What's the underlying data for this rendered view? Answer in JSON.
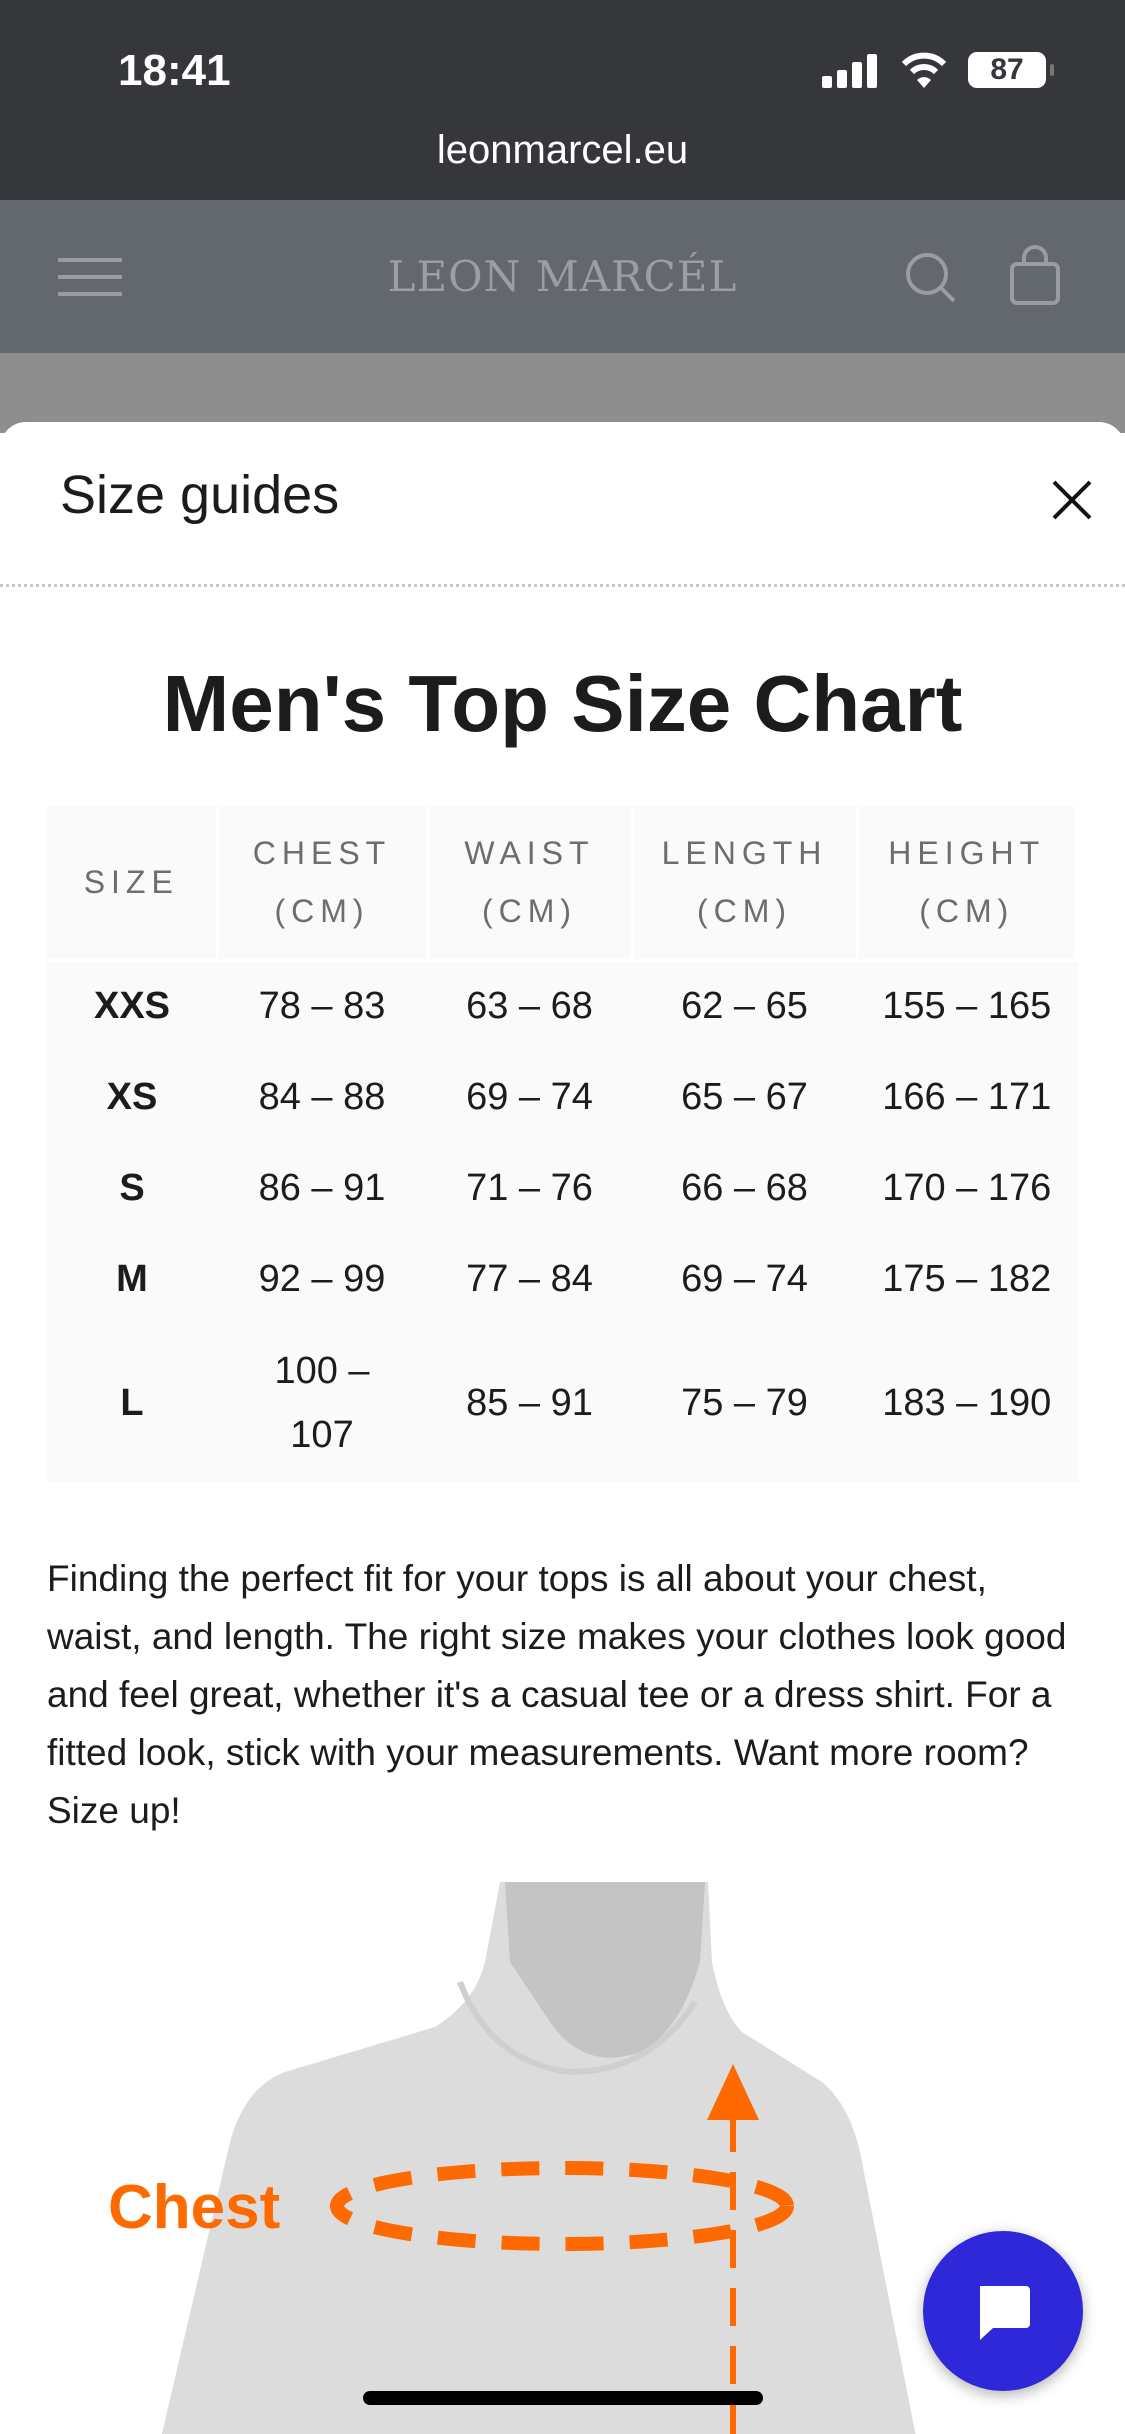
{
  "status_bar": {
    "time": "18:41",
    "battery": "87",
    "url": "leonmarcel.eu"
  },
  "site_header": {
    "logo": "LEON MARCÉL",
    "icons": [
      "menu-icon",
      "search-icon",
      "bag-icon"
    ]
  },
  "modal": {
    "title": "Size guides",
    "close_icon": "close-icon"
  },
  "size_chart": {
    "title": "Men's Top Size Chart",
    "columns": [
      "SIZE",
      "CHEST (CM)",
      "WAIST (CM)",
      "LENGTH (CM)",
      "HEIGHT (CM)"
    ],
    "rows": [
      [
        "XXS",
        "78 – 83",
        "63 – 68",
        "62 – 65",
        "155 – 165"
      ],
      [
        "XS",
        "84 – 88",
        "69 – 74",
        "65 – 67",
        "166 – 171"
      ],
      [
        "S",
        "86 – 91",
        "71 – 76",
        "66 – 68",
        "170 – 176"
      ],
      [
        "M",
        "92 – 99",
        "77 – 84",
        "69 – 74",
        "175 – 182"
      ],
      [
        "L",
        "100 – 107",
        "85 – 91",
        "75 – 79",
        "183 – 190"
      ]
    ]
  },
  "description": "Finding the perfect fit for your tops is all about your chest, waist, and length. The right size makes your clothes look good and feel great, whether it's a casual tee or a dress shirt. For a fitted look, stick with your measurements. Want more room? Size up!",
  "illustration": {
    "label": "Chest",
    "accent": "#ff6a00"
  },
  "chat_button": {
    "icon": "chat-icon",
    "color": "#2e28d8"
  }
}
